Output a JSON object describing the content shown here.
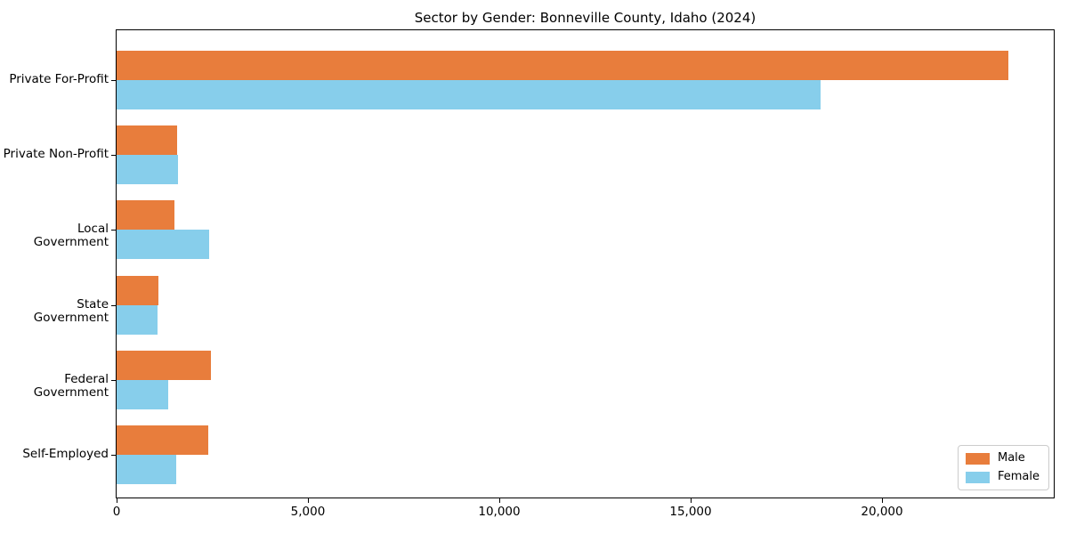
{
  "chart_data": {
    "type": "bar",
    "orientation": "horizontal",
    "title": "Sector by Gender: Bonneville County, Idaho (2024)",
    "xlabel": "",
    "ylabel": "",
    "grid": false,
    "categories": [
      "Private For-Profit",
      "Private Non-Profit",
      "Local Government",
      "State Government",
      "Federal Government",
      "Self-Employed"
    ],
    "series": [
      {
        "name": "Male",
        "color": "#e87d3c",
        "values": [
          23300,
          1580,
          1510,
          1090,
          2460,
          2400
        ]
      },
      {
        "name": "Female",
        "color": "#87ceeb",
        "values": [
          18400,
          1600,
          2410,
          1060,
          1340,
          1550
        ]
      }
    ],
    "xlim": [
      0,
      24480
    ],
    "xticks": [
      0,
      5000,
      10000,
      15000,
      20000
    ],
    "xtick_labels": [
      "0",
      "5,000",
      "10,000",
      "15,000",
      "20,000"
    ],
    "legend": {
      "position": "lower right",
      "entries": [
        "Male",
        "Female"
      ]
    }
  }
}
